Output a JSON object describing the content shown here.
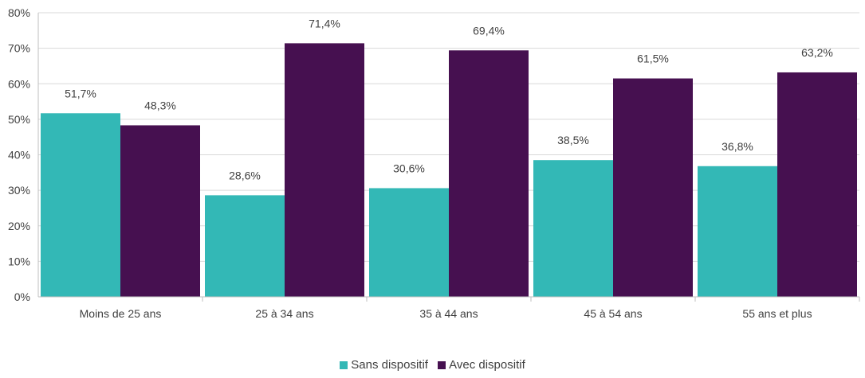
{
  "chart_data": {
    "type": "bar",
    "categories": [
      "Moins de 25 ans",
      "25 à 34 ans",
      "35 à 44 ans",
      "45 à 54 ans",
      "55 ans et plus"
    ],
    "series": [
      {
        "name": "Sans dispositif",
        "color": "#33B8B6",
        "values": [
          51.7,
          28.6,
          30.6,
          38.5,
          36.8
        ],
        "labels": [
          "51,7%",
          "28,6%",
          "30,6%",
          "38,5%",
          "36,8%"
        ]
      },
      {
        "name": "Avec dispositif",
        "color": "#461050",
        "values": [
          48.3,
          71.4,
          69.4,
          61.5,
          63.2
        ],
        "labels": [
          "48,3%",
          "71,4%",
          "69,4%",
          "61,5%",
          "63,2%"
        ]
      }
    ],
    "ylim": [
      0,
      80
    ],
    "yticks": [
      "0%",
      "10%",
      "20%",
      "30%",
      "40%",
      "50%",
      "60%",
      "70%",
      "80%"
    ],
    "grid": true,
    "legend_position": "bottom"
  }
}
